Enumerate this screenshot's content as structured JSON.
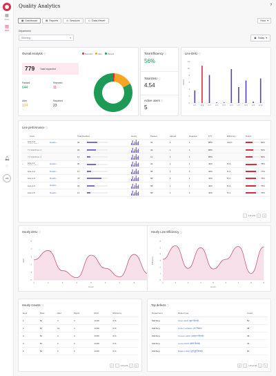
{
  "app": {
    "title": "Quality Analytics",
    "help_glyph": "?",
    "sidebar": {
      "items": [
        {
          "label": "Daitity",
          "icon": "chart-icon",
          "glyph": "▦"
        },
        {
          "label": "Maps",
          "icon": "document-icon",
          "glyph": "▤"
        }
      ],
      "avatar": "HM"
    }
  },
  "tabs": [
    {
      "label": "Dashboard",
      "icon": "grid-icon",
      "glyph": "▦"
    },
    {
      "label": "Reports",
      "icon": "report-icon",
      "glyph": "▤"
    },
    {
      "label": "Sessions",
      "icon": "clock-icon",
      "glyph": "◷"
    },
    {
      "label": "Data Viewer",
      "icon": "table-icon",
      "glyph": "▭"
    }
  ],
  "hour_filter": "Hour",
  "department": {
    "label": "Department",
    "value": "Stitching"
  },
  "date_filter": "Today",
  "overall": {
    "title": "Overall Analysis",
    "legend": [
      "Rejected",
      "Alter",
      "Passed"
    ],
    "total_inspected": "779",
    "total_label": "Total Inspected",
    "passed_label": "Passed",
    "passed": "644",
    "rejected_label": "Rejected",
    "rejected": "11",
    "alter_label": "Alter",
    "alter": "124",
    "repaired_label": "Repaired",
    "repaired": "23"
  },
  "efficiency": {
    "total_eff_label": "Total Efficiency",
    "total_eff": "56%",
    "total_dhu_label": "Total DHU",
    "total_dhu": "4.54",
    "active_users_label": "Active users",
    "active_users": "5"
  },
  "line_dhu": {
    "title": "Line DHU",
    "ylabel": "DHU%",
    "categories": [
      "Lit 1",
      "Lit 2",
      "Lit 3",
      "Lit 4",
      "Lit 5",
      "Lit 6",
      "Lit 7",
      "Lit 8",
      "Lit 9",
      "Lit 10"
    ],
    "values": [
      3.6,
      10.8,
      8.1,
      0.2,
      0.2,
      9.8,
      4.6,
      6.5,
      0.4,
      7.1
    ],
    "highlight_index": 1,
    "yticks": [
      "12",
      "10",
      "8",
      "6",
      "4",
      "2",
      "0"
    ]
  },
  "line_performance": {
    "title": "Line performance",
    "columns": [
      "Lines",
      "Total checked",
      "Hourly",
      "Passed",
      "Altered",
      "Rejected",
      "FTT",
      "Efficiency",
      "Defect"
    ],
    "rows": [
      {
        "name": "Line 1.0",
        "sub": "Sawbow Gaps 1",
        "details": "Details",
        "total": "42",
        "pct": 0.5,
        "passed": "41",
        "altered": "1",
        "rejected": "1",
        "ftt": "88%",
        "eff": "4/1 %",
        "defect": "50%",
        "def": 0.5,
        "type": "parent",
        "toggle": "−"
      },
      {
        "name": "T1 Mukhliner-1",
        "sub": "",
        "details": "",
        "total": "34",
        "pct": 0.42,
        "passed": "42",
        "altered": "1",
        "rejected": "1",
        "ftt": "88%",
        "eff": "",
        "defect": "50%",
        "def": 0.55,
        "type": "sub"
      },
      {
        "name": "T1 Mukhliner-2",
        "sub": "",
        "details": "",
        "total": "12",
        "pct": 0.15,
        "passed": "12",
        "altered": "1",
        "rejected": "1",
        "ftt": "88%",
        "eff": "",
        "defect": "50%",
        "def": 0.5,
        "type": "sub"
      },
      {
        "name": "Line 1.1",
        "sub": "Mukhtar Gaps 1",
        "details": "Details",
        "total": "36",
        "pct": 0.44,
        "passed": "42",
        "altered": "1",
        "rejected": "1",
        "ftt": "40%",
        "eff": "5/ 4",
        "defect": "78%",
        "def": 0.78,
        "type": "parent",
        "toggle": "+"
      },
      {
        "name": "Line 1.2",
        "sub": "",
        "details": "Details",
        "total": "17",
        "pct": 0.2,
        "passed": "58",
        "altered": "1",
        "rejected": "1",
        "ftt": "40%",
        "eff": "5/ 4",
        "defect": "77%",
        "def": 0.77,
        "type": "plain"
      },
      {
        "name": "Line 1.3",
        "sub": "",
        "details": "Details",
        "total": "73",
        "pct": 0.7,
        "passed": "58",
        "altered": "1",
        "rejected": "1",
        "ftt": "40%",
        "eff": "5/ 4",
        "defect": "76%",
        "def": 0.76,
        "type": "plain"
      },
      {
        "name": "Line 1.4",
        "sub": "",
        "details": "Details",
        "total": "32",
        "pct": 0.38,
        "passed": "58",
        "altered": "1",
        "rejected": "1",
        "ftt": "40%",
        "eff": "5/ 4",
        "defect": "76%",
        "def": 0.76,
        "type": "plain"
      },
      {
        "name": "Line 1.5",
        "sub": "",
        "details": "Details",
        "total": "14",
        "pct": 0.17,
        "passed": "58",
        "altered": "1",
        "rejected": "1",
        "ftt": "40%",
        "eff": "5/ 4",
        "defect": "76%",
        "def": 0.76,
        "type": "plain"
      }
    ],
    "pager": "1-5 of 5"
  },
  "hourly_dhu": {
    "title": "Hourly DHU",
    "xlabel": "Hours",
    "ylabel": "DHU",
    "x": [
      1,
      2,
      3,
      4,
      5,
      6,
      7,
      8,
      9
    ],
    "values": [
      2.6,
      3.8,
      1.2,
      0.3,
      3.2,
      1.5,
      0.4,
      3.3,
      0.8
    ],
    "yticks": [
      "5",
      "4",
      "3",
      "2",
      "1",
      "0"
    ]
  },
  "hourly_eff": {
    "title": "Hourly Line Efficiency",
    "xlabel": "Hours",
    "ylabel": "Efficiency",
    "x": [
      1,
      2,
      3,
      4,
      5,
      6,
      7,
      8,
      9
    ],
    "values": [
      3.2,
      5.3,
      1.8,
      5.0,
      1.7,
      3.2,
      5.2,
      1.0,
      5.1
    ],
    "yticks": [
      "6",
      "5",
      "4",
      "3",
      "2",
      "1",
      "0"
    ]
  },
  "hourly_counts": {
    "title": "Hourly Counts",
    "columns": [
      "Hour",
      "Pass",
      "Alter",
      "Reject",
      "DHU",
      "Efficiency"
    ],
    "rows": [
      [
        "1",
        "54",
        "4",
        "4",
        "13.66",
        "0 %"
      ],
      [
        "2",
        "54",
        "14",
        "4",
        "13.66",
        "0 %"
      ],
      [
        "3",
        "54",
        "4",
        "4",
        "13.66",
        "0 %"
      ],
      [
        "4",
        "54",
        "4",
        "4",
        "13.66",
        "0 %"
      ],
      [
        "5",
        "54",
        "4",
        "4",
        "13.66",
        "0 %"
      ]
    ],
    "pager": "1-5 of 9"
  },
  "top_defects": {
    "title": "Top defects",
    "columns": [
      "Department",
      "Defect type",
      "Count"
    ],
    "rows": [
      [
        "Stitching",
        "Open stitch (छूटा सिलाई)",
        "52"
      ],
      [
        "Stitching",
        "Colour variation (रंग भिन्नता)",
        "38"
      ],
      [
        "Stitching",
        "Uneven stitch (असमान सिलाई)",
        "36"
      ],
      [
        "Stitching",
        "Loose stitch (ढीली सिलाई)",
        "33"
      ],
      [
        "Stitching",
        "Broken stitch (टूटी हुई सिलाई)",
        "20"
      ]
    ],
    "pager": "1-5 of 10"
  },
  "colors": {
    "accent": "#e0294a",
    "passed": "#1e9a57",
    "alter": "#f5a524",
    "rejected": "#d92b3e",
    "purple": "#5a3fb0",
    "pink": "#c2577a"
  }
}
